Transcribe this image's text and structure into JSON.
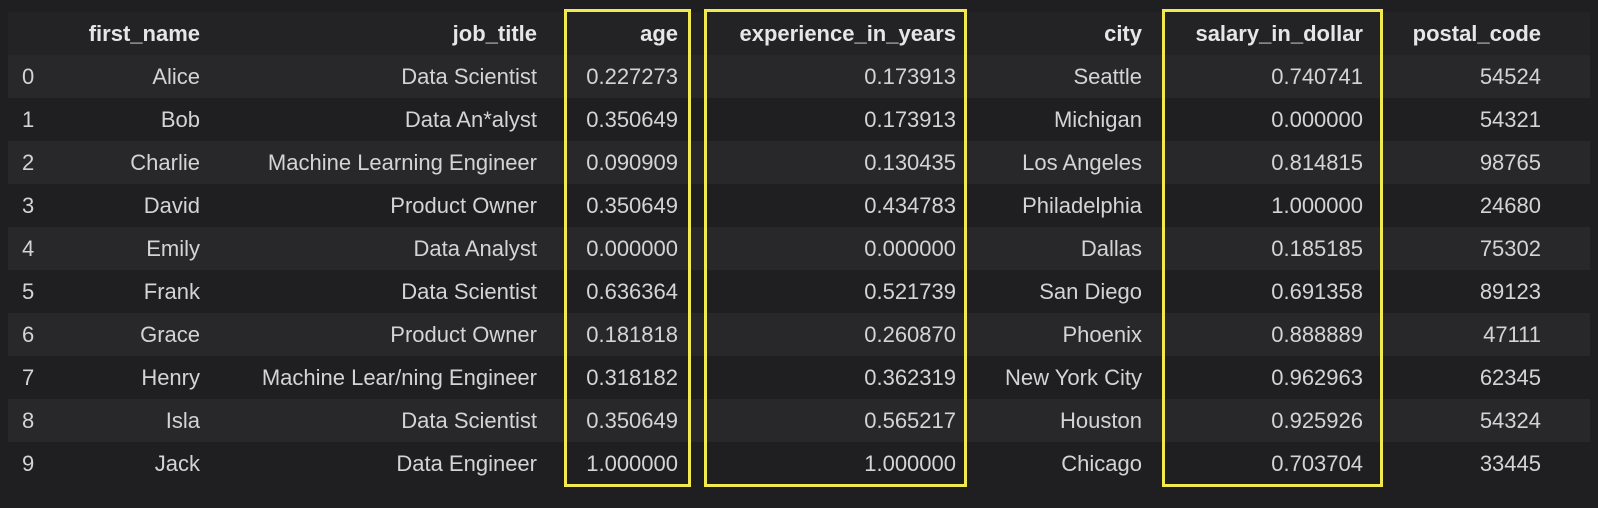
{
  "table": {
    "columns": [
      "",
      "first_name",
      "job_title",
      "age",
      "experience_in_years",
      "city",
      "salary_in_dollar",
      "postal_code"
    ],
    "rows": [
      [
        "0",
        "Alice",
        "Data Scientist",
        "0.227273",
        "0.173913",
        "Seattle",
        "0.740741",
        "54524"
      ],
      [
        "1",
        "Bob",
        "Data An*alyst",
        "0.350649",
        "0.173913",
        "Michigan",
        "0.000000",
        "54321"
      ],
      [
        "2",
        "Charlie",
        "Machine Learning Engineer",
        "0.090909",
        "0.130435",
        "Los Angeles",
        "0.814815",
        "98765"
      ],
      [
        "3",
        "David",
        "Product Owner",
        "0.350649",
        "0.434783",
        "Philadelphia",
        "1.000000",
        "24680"
      ],
      [
        "4",
        "Emily",
        "Data Analyst",
        "0.000000",
        "0.000000",
        "Dallas",
        "0.185185",
        "75302"
      ],
      [
        "5",
        "Frank",
        "Data Scientist",
        "0.636364",
        "0.521739",
        "San Diego",
        "0.691358",
        "89123"
      ],
      [
        "6",
        "Grace",
        "Product Owner",
        "0.181818",
        "0.260870",
        "Phoenix",
        "0.888889",
        "47111"
      ],
      [
        "7",
        "Henry",
        "Machine Lear/ning Engineer",
        "0.318182",
        "0.362319",
        "New York City",
        "0.962963",
        "62345"
      ],
      [
        "8",
        "Isla",
        "Data Scientist",
        "0.350649",
        "0.565217",
        "Houston",
        "0.925926",
        "54324"
      ],
      [
        "9",
        "Jack",
        "Data Engineer",
        "1.000000",
        "1.000000",
        "Chicago",
        "0.703704",
        "33445"
      ]
    ],
    "highlighted_columns": [
      "age",
      "experience_in_years",
      "salary_in_dollar"
    ]
  },
  "colors": {
    "background": "#1f1f22",
    "row_alt": "#28282b",
    "text": "#d4d4d4",
    "highlight": "#f2e94e"
  }
}
